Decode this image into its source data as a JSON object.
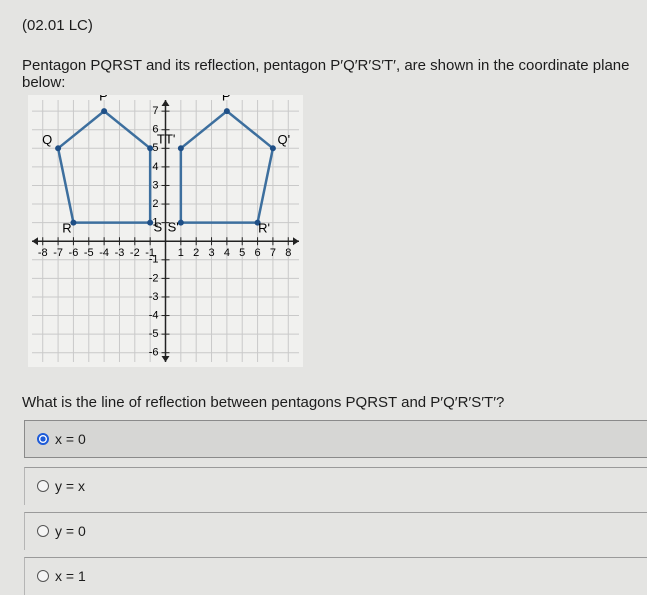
{
  "header": {
    "code": "(02.01 LC)"
  },
  "question": "Pentagon PQRST and its reflection, pentagon P′Q′R′S′T′, are shown in the coordinate plane below:",
  "graph": {
    "xlim": [
      -8.7,
      8.7
    ],
    "ylim": [
      -6.5,
      7.6
    ],
    "xticks": [
      -8,
      -7,
      -6,
      -5,
      -4,
      -3,
      -2,
      -1,
      1,
      2,
      3,
      4,
      5,
      6,
      7,
      8
    ],
    "yticks": [
      -6,
      -5,
      -4,
      -3,
      -2,
      -1,
      1,
      2,
      3,
      4,
      5,
      6,
      7
    ],
    "color": "#3d6f9e",
    "polygons": [
      {
        "labels": [
          "P",
          "Q",
          "R",
          "S",
          "T"
        ],
        "x": [
          -4,
          -7,
          -6,
          -1,
          -1
        ],
        "y": [
          7,
          5,
          1,
          1,
          5
        ]
      },
      {
        "labels": [
          "P'",
          "Q'",
          "R'",
          "S'",
          "T'"
        ],
        "x": [
          4,
          7,
          6,
          1,
          1
        ],
        "y": [
          7,
          5,
          1,
          1,
          5
        ]
      }
    ]
  },
  "prompt": "What is the line of reflection between pentagons PQRST and P′Q′R′S′T′?",
  "options": [
    "x = 0",
    "y = x",
    "y = 0",
    "x = 1"
  ],
  "selected": 0
}
